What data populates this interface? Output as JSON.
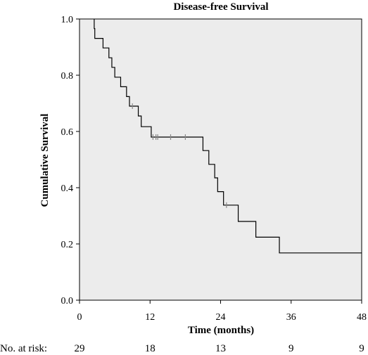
{
  "chart_data": {
    "type": "line",
    "title": "Disease-free Survival",
    "xlabel": "Time (months)",
    "ylabel": "Cumulative Survival",
    "xlim": [
      0,
      48
    ],
    "ylim": [
      0.0,
      1.0
    ],
    "x_ticks": [
      0,
      12,
      24,
      36,
      48
    ],
    "y_ticks": [
      0.0,
      0.2,
      0.4,
      0.6,
      0.8,
      1.0
    ],
    "y_tick_labels": [
      "0.0",
      "0.2",
      "0.4",
      "0.6",
      "0.8",
      "1.0"
    ],
    "plot_background": "#ececec",
    "line_color": "#000000",
    "censor_color": "#888888",
    "series": [
      {
        "steps": [
          {
            "x": 2.5,
            "y": 0.966
          },
          {
            "x": 2.6,
            "y": 0.931
          },
          {
            "x": 4.0,
            "y": 0.897
          },
          {
            "x": 5.0,
            "y": 0.862
          },
          {
            "x": 5.5,
            "y": 0.828
          },
          {
            "x": 6.0,
            "y": 0.793
          },
          {
            "x": 7.0,
            "y": 0.759
          },
          {
            "x": 8.0,
            "y": 0.724
          },
          {
            "x": 8.5,
            "y": 0.69
          },
          {
            "x": 10.0,
            "y": 0.655
          },
          {
            "x": 10.5,
            "y": 0.617
          },
          {
            "x": 12.2,
            "y": 0.58
          },
          {
            "x": 21.0,
            "y": 0.532
          },
          {
            "x": 22.0,
            "y": 0.483
          },
          {
            "x": 23.0,
            "y": 0.435
          },
          {
            "x": 23.5,
            "y": 0.386
          },
          {
            "x": 24.5,
            "y": 0.338
          },
          {
            "x": 27.0,
            "y": 0.28
          },
          {
            "x": 30.0,
            "y": 0.224
          },
          {
            "x": 34.0,
            "y": 0.168
          }
        ],
        "end_x": 48,
        "censored": [
          {
            "x": 9.0,
            "y": 0.69
          },
          {
            "x": 12.5,
            "y": 0.58
          },
          {
            "x": 13.0,
            "y": 0.58
          },
          {
            "x": 13.3,
            "y": 0.58
          },
          {
            "x": 15.5,
            "y": 0.58
          },
          {
            "x": 18.0,
            "y": 0.58
          },
          {
            "x": 25.0,
            "y": 0.338
          }
        ]
      }
    ],
    "risk_table": {
      "label": "No. at risk:",
      "times": [
        0,
        12,
        24,
        36,
        48
      ],
      "counts": [
        29,
        18,
        13,
        9,
        9
      ]
    }
  }
}
